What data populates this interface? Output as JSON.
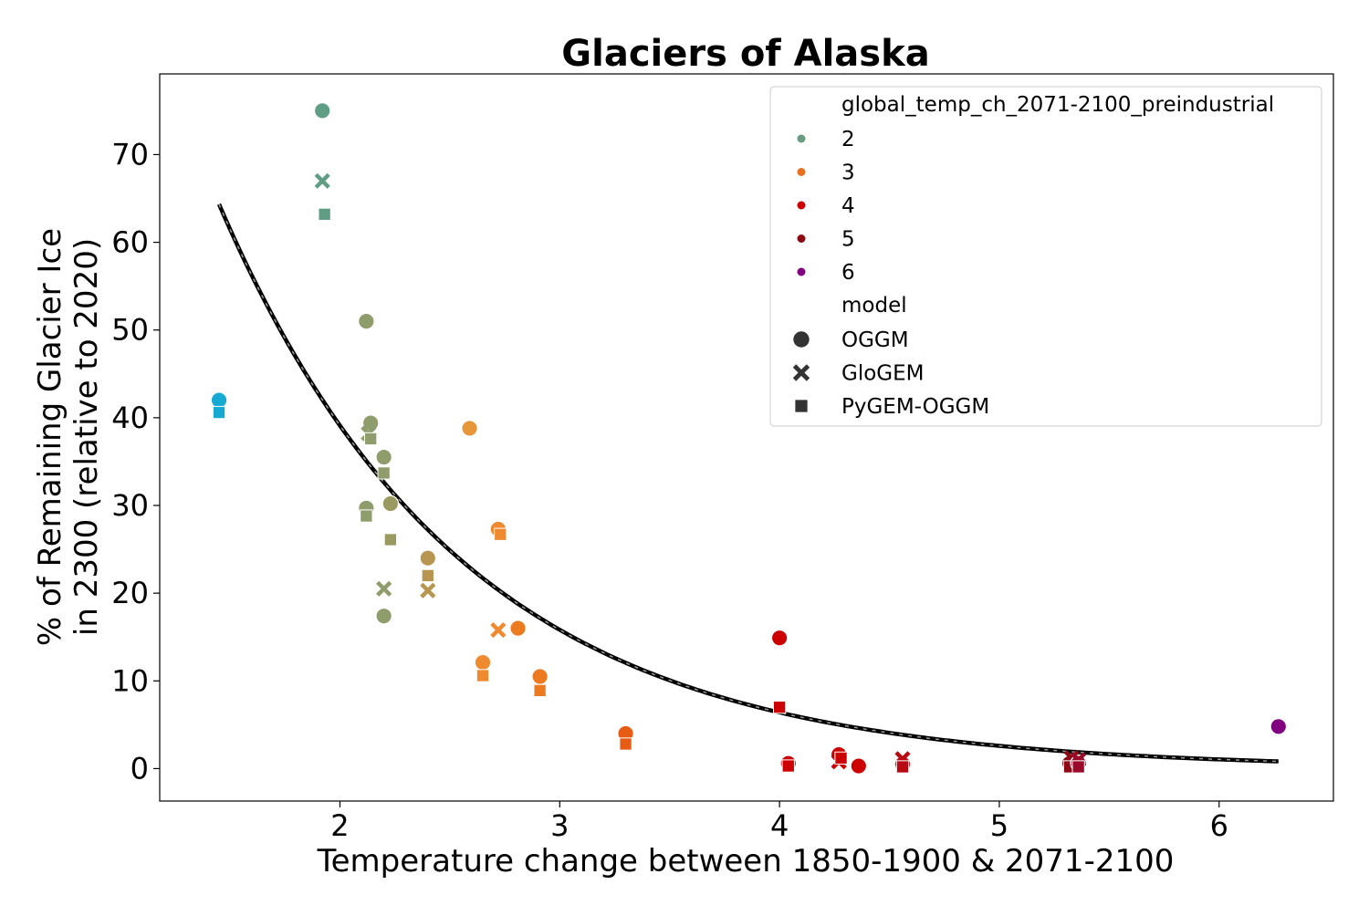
{
  "chart_data": {
    "type": "scatter",
    "title": "Glaciers of Alaska",
    "xlabel": "Temperature change between 1850-1900 & 2071-2100",
    "ylabel_lines": [
      "% of Remaining Glacier Ice",
      "in 2300 (relative to 2020)"
    ],
    "xlim": [
      1.18,
      6.52
    ],
    "ylim": [
      -3.7,
      79.2
    ],
    "xticks": [
      2,
      3,
      4,
      5,
      6
    ],
    "yticks": [
      0,
      10,
      20,
      30,
      40,
      50,
      60,
      70
    ],
    "grid": false,
    "legend": {
      "placement": "top-right",
      "hue_title": "global_temp_ch_2071-2100_preindustrial",
      "hue_entries": [
        {
          "label": "2",
          "color": "#6b9a82"
        },
        {
          "label": "3",
          "color": "#e8701e"
        },
        {
          "label": "4",
          "color": "#cc0000"
        },
        {
          "label": "5",
          "color": "#8b0a14"
        },
        {
          "label": "6",
          "color": "#800080"
        }
      ],
      "style_title": "model",
      "style_entries": [
        {
          "label": "OGGM",
          "marker": "circle"
        },
        {
          "label": "GloGEM",
          "marker": "x"
        },
        {
          "label": "PyGEM-OGGM",
          "marker": "square"
        }
      ]
    },
    "fit_curve": {
      "name": "exponential fit",
      "a": 239,
      "b": 0.905,
      "x_range": [
        1.45,
        6.27
      ],
      "color": "#000000"
    },
    "points": [
      {
        "x": 1.45,
        "y": 42.0,
        "model": "OGGM",
        "color": "#16a9d2"
      },
      {
        "x": 1.45,
        "y": 40.6,
        "model": "PyGEM-OGGM",
        "color": "#16a9d2"
      },
      {
        "x": 1.92,
        "y": 75.0,
        "model": "OGGM",
        "color": "#5f9e84"
      },
      {
        "x": 1.92,
        "y": 67.0,
        "model": "GloGEM",
        "color": "#5f9e84"
      },
      {
        "x": 1.93,
        "y": 63.2,
        "model": "PyGEM-OGGM",
        "color": "#5f9e84"
      },
      {
        "x": 2.12,
        "y": 51.0,
        "model": "OGGM",
        "color": "#8f9c6b"
      },
      {
        "x": 2.14,
        "y": 39.4,
        "model": "OGGM",
        "color": "#8f9c6b"
      },
      {
        "x": 2.13,
        "y": 38.2,
        "model": "GloGEM",
        "color": "#8f9c6b"
      },
      {
        "x": 2.14,
        "y": 37.6,
        "model": "PyGEM-OGGM",
        "color": "#8f9c6b"
      },
      {
        "x": 2.2,
        "y": 35.5,
        "model": "OGGM",
        "color": "#8f9c6b"
      },
      {
        "x": 2.2,
        "y": 33.7,
        "model": "PyGEM-OGGM",
        "color": "#8f9c6b"
      },
      {
        "x": 2.12,
        "y": 29.7,
        "model": "OGGM",
        "color": "#8f9c6b"
      },
      {
        "x": 2.12,
        "y": 28.8,
        "model": "PyGEM-OGGM",
        "color": "#8f9c6b"
      },
      {
        "x": 2.23,
        "y": 30.2,
        "model": "OGGM",
        "color": "#9a9a60"
      },
      {
        "x": 2.23,
        "y": 26.1,
        "model": "PyGEM-OGGM",
        "color": "#9a9a60"
      },
      {
        "x": 2.2,
        "y": 20.5,
        "model": "GloGEM",
        "color": "#8f9c6b"
      },
      {
        "x": 2.2,
        "y": 17.4,
        "model": "OGGM",
        "color": "#8f9c6b"
      },
      {
        "x": 2.4,
        "y": 24.0,
        "model": "OGGM",
        "color": "#b89650"
      },
      {
        "x": 2.4,
        "y": 22.0,
        "model": "PyGEM-OGGM",
        "color": "#b89650"
      },
      {
        "x": 2.4,
        "y": 20.3,
        "model": "GloGEM",
        "color": "#b89650"
      },
      {
        "x": 2.59,
        "y": 38.8,
        "model": "OGGM",
        "color": "#e79639"
      },
      {
        "x": 2.72,
        "y": 27.3,
        "model": "OGGM",
        "color": "#ef8a30"
      },
      {
        "x": 2.73,
        "y": 26.7,
        "model": "PyGEM-OGGM",
        "color": "#ef8a30"
      },
      {
        "x": 2.72,
        "y": 15.8,
        "model": "GloGEM",
        "color": "#ef8a30"
      },
      {
        "x": 2.81,
        "y": 16.0,
        "model": "OGGM",
        "color": "#ec7a20"
      },
      {
        "x": 2.65,
        "y": 12.1,
        "model": "OGGM",
        "color": "#ef8a30"
      },
      {
        "x": 2.65,
        "y": 10.6,
        "model": "PyGEM-OGGM",
        "color": "#ef8a30"
      },
      {
        "x": 2.91,
        "y": 10.5,
        "model": "OGGM",
        "color": "#ec7a20"
      },
      {
        "x": 2.91,
        "y": 8.9,
        "model": "PyGEM-OGGM",
        "color": "#ec7a20"
      },
      {
        "x": 3.3,
        "y": 4.0,
        "model": "OGGM",
        "color": "#e65c14"
      },
      {
        "x": 3.3,
        "y": 2.8,
        "model": "PyGEM-OGGM",
        "color": "#e65c14"
      },
      {
        "x": 4.0,
        "y": 14.9,
        "model": "OGGM",
        "color": "#cc0000"
      },
      {
        "x": 4.0,
        "y": 7.0,
        "model": "PyGEM-OGGM",
        "color": "#cc0000"
      },
      {
        "x": 4.04,
        "y": 0.6,
        "model": "OGGM",
        "color": "#cc0000"
      },
      {
        "x": 4.04,
        "y": 0.3,
        "model": "PyGEM-OGGM",
        "color": "#cc0000"
      },
      {
        "x": 4.27,
        "y": 1.6,
        "model": "OGGM",
        "color": "#cc0000"
      },
      {
        "x": 4.27,
        "y": 0.8,
        "model": "GloGEM",
        "color": "#cc0000"
      },
      {
        "x": 4.28,
        "y": 1.2,
        "model": "PyGEM-OGGM",
        "color": "#cc0000"
      },
      {
        "x": 4.36,
        "y": 0.3,
        "model": "OGGM",
        "color": "#cc0000"
      },
      {
        "x": 4.56,
        "y": 0.5,
        "model": "OGGM",
        "color": "#b80a12"
      },
      {
        "x": 4.56,
        "y": 1.1,
        "model": "GloGEM",
        "color": "#b80a12"
      },
      {
        "x": 4.56,
        "y": 0.2,
        "model": "PyGEM-OGGM",
        "color": "#b80a12"
      },
      {
        "x": 5.32,
        "y": 0.6,
        "model": "OGGM",
        "color": "#8b0a14"
      },
      {
        "x": 5.33,
        "y": 1.2,
        "model": "GloGEM",
        "color": "#8b0a14"
      },
      {
        "x": 5.32,
        "y": 0.2,
        "model": "PyGEM-OGGM",
        "color": "#8b0a14"
      },
      {
        "x": 5.36,
        "y": 0.6,
        "model": "OGGM",
        "color": "#9a0a2a"
      },
      {
        "x": 5.36,
        "y": 1.0,
        "model": "GloGEM",
        "color": "#9a0a2a"
      },
      {
        "x": 5.36,
        "y": 0.2,
        "model": "PyGEM-OGGM",
        "color": "#9a0a2a"
      },
      {
        "x": 6.27,
        "y": 4.8,
        "model": "OGGM",
        "color": "#800080"
      }
    ]
  }
}
